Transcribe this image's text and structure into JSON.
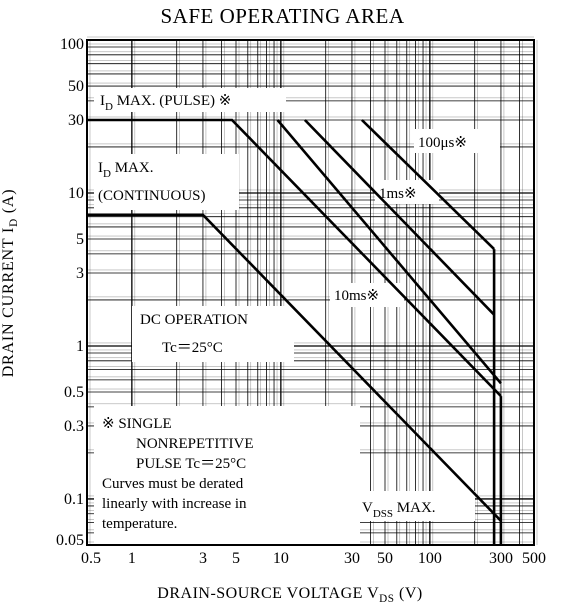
{
  "chart_data": {
    "type": "line",
    "title": "SAFE OPERATING AREA",
    "xlabel": {
      "text": "DRAIN-SOURCE VOLTAGE  V",
      "sub": "DS",
      "unit": "  (V)"
    },
    "ylabel": {
      "text": "DRAIN CURRENT  I",
      "sub": "D",
      "unit": "  (A)"
    },
    "x_scale": "log",
    "y_scale": "log",
    "xlim": [
      0.5,
      500
    ],
    "ylim": [
      0.05,
      100
    ],
    "grid": true,
    "x_ticks": [
      {
        "value": 0.5,
        "label": "0.5"
      },
      {
        "value": 1,
        "label": "1"
      },
      {
        "value": 3,
        "label": "3"
      },
      {
        "value": 5,
        "label": "5"
      },
      {
        "value": 10,
        "label": "10"
      },
      {
        "value": 30,
        "label": "30"
      },
      {
        "value": 50,
        "label": "50"
      },
      {
        "value": 100,
        "label": "100"
      },
      {
        "value": 300,
        "label": "300"
      },
      {
        "value": 500,
        "label": "500"
      }
    ],
    "y_ticks": [
      {
        "value": 100,
        "label": "100"
      },
      {
        "value": 50,
        "label": "50"
      },
      {
        "value": 30,
        "label": "30"
      },
      {
        "value": 10,
        "label": "10"
      },
      {
        "value": 5,
        "label": "5"
      },
      {
        "value": 3,
        "label": "3"
      },
      {
        "value": 1,
        "label": "1"
      },
      {
        "value": 0.5,
        "label": "0.5"
      },
      {
        "value": 0.3,
        "label": "0.3"
      },
      {
        "value": 0.1,
        "label": "0.1"
      },
      {
        "value": 0.05,
        "label": "0.05"
      }
    ],
    "series": [
      {
        "points": [
          [
            0.5,
            30
          ],
          [
            4.7,
            30
          ],
          [
            300,
            0.47
          ]
        ]
      },
      {
        "points": [
          [
            9.5,
            30
          ],
          [
            300,
            0.57
          ]
        ]
      },
      {
        "points": [
          [
            14.5,
            30
          ],
          [
            270,
            1.6
          ]
        ]
      },
      {
        "points": [
          [
            35,
            30
          ],
          [
            270,
            4.3
          ]
        ]
      },
      {
        "points": [
          [
            0.5,
            7.2
          ],
          [
            3,
            7.2
          ],
          [
            300,
            0.072
          ]
        ]
      },
      {
        "points": [
          [
            270,
            4.3
          ],
          [
            270,
            0.05
          ]
        ]
      },
      {
        "points": [
          [
            300,
            0.47
          ],
          [
            300,
            0.05
          ]
        ]
      }
    ],
    "annotations": [
      {
        "text": "I",
        "sub": "D",
        "rest": " MAX. (PULSE) ※"
      },
      {
        "text": "I",
        "sub": "D",
        "rest": " MAX."
      },
      {
        "text": "(CONTINUOUS)"
      },
      {
        "text": "100",
        "rest": "μs※"
      },
      {
        "text": "1ms※"
      },
      {
        "text": "10ms※"
      },
      {
        "text": "DC OPERATION"
      },
      {
        "text": "Tc＝25°C"
      },
      {
        "text": "※  SINGLE"
      },
      {
        "text": "NONREPETITIVE"
      },
      {
        "text": "PULSE Tc＝25°C"
      },
      {
        "text": "Curves must be derated"
      },
      {
        "text": "linearly with increase in"
      },
      {
        "text": "temperature."
      },
      {
        "text": "V",
        "sub": "DSS",
        "rest": " MAX."
      }
    ]
  }
}
